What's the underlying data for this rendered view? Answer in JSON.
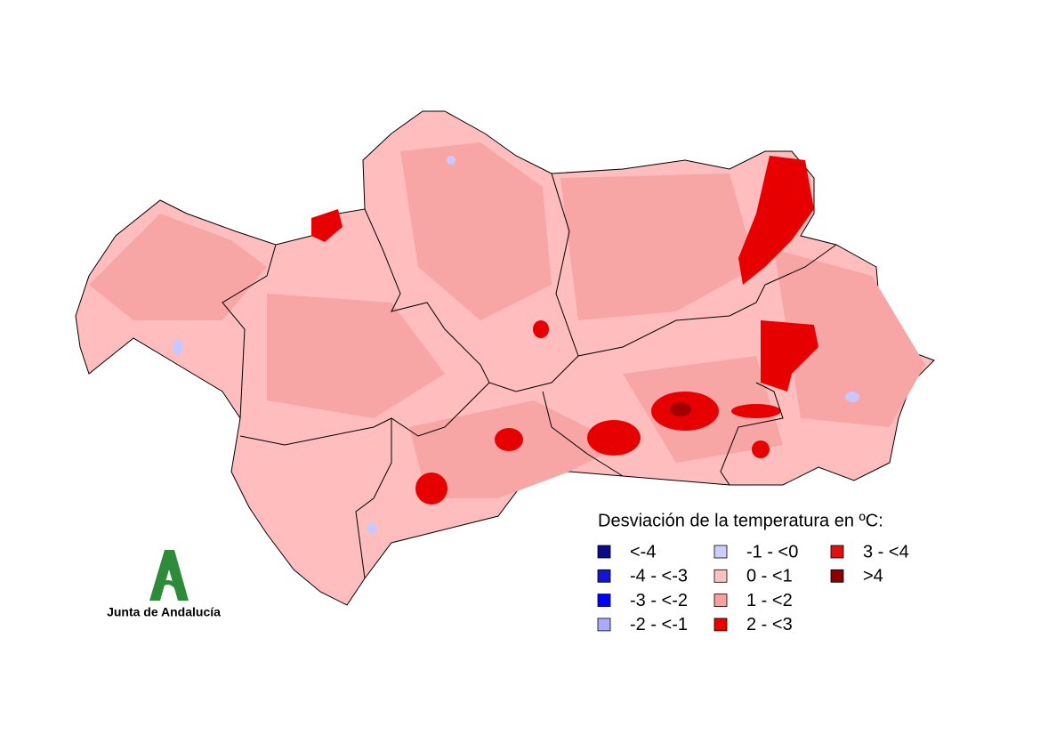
{
  "legend": {
    "title": "Desviación de la temperatura en ºC:",
    "items": [
      {
        "label": "<-4",
        "color": "#0a0a8c"
      },
      {
        "label": "-4 - <-3",
        "color": "#1414d2"
      },
      {
        "label": "-3 - <-2",
        "color": "#0000ff"
      },
      {
        "label": "-2 - <-1",
        "color": "#aaaaff"
      },
      {
        "label": "-1 - <0",
        "color": "#ccccff"
      },
      {
        "label": "0 - <1",
        "color": "#ffc0c0"
      },
      {
        "label": "1 - <2",
        "color": "#f7a0a0"
      },
      {
        "label": "2 - <3",
        "color": "#ee0000"
      },
      {
        "label": "3 - <4",
        "color": "#dd1111"
      },
      {
        "label": ">4",
        "color": "#8b0000"
      }
    ]
  },
  "logo": {
    "text": "Junta de Andalucía"
  }
}
